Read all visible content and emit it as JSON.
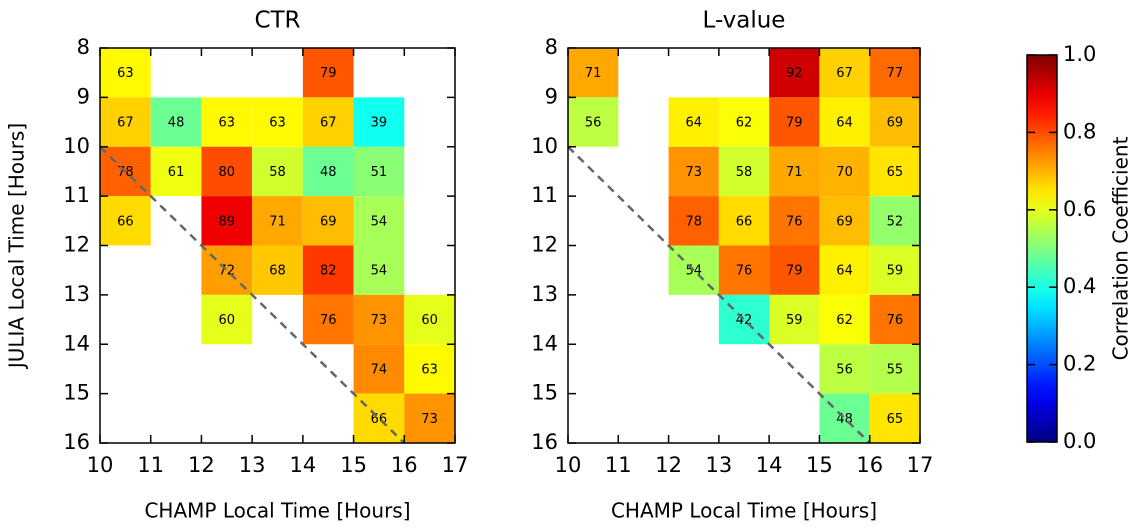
{
  "chart_data": [
    {
      "type": "heatmap",
      "title": "CTR",
      "xlabel": "CHAMP Local Time [Hours]",
      "ylabel": "JULIA Local Time [Hours]",
      "xlim": [
        10,
        17
      ],
      "ylim": [
        16,
        8
      ],
      "xticks": [
        10,
        11,
        12,
        13,
        14,
        15,
        16,
        17
      ],
      "yticks": [
        8,
        9,
        10,
        11,
        12,
        13,
        14,
        15,
        16
      ],
      "x": [
        10,
        14,
        10,
        11,
        12,
        13,
        14,
        15,
        10,
        11,
        12,
        13,
        14,
        15,
        10,
        12,
        13,
        14,
        15,
        12,
        13,
        14,
        15,
        12,
        14,
        15,
        16,
        15,
        16,
        15,
        16
      ],
      "y": [
        8,
        8,
        9,
        9,
        9,
        9,
        9,
        9,
        10,
        10,
        10,
        10,
        10,
        10,
        11,
        11,
        11,
        11,
        11,
        12,
        12,
        12,
        12,
        13,
        13,
        13,
        13,
        14,
        14,
        15,
        15
      ],
      "values": [
        0.63,
        0.79,
        0.67,
        0.48,
        0.63,
        0.63,
        0.67,
        0.39,
        0.78,
        0.61,
        0.8,
        0.58,
        0.48,
        0.51,
        0.66,
        0.89,
        0.71,
        0.69,
        0.54,
        0.72,
        0.68,
        0.82,
        0.54,
        0.6,
        0.76,
        0.73,
        0.6,
        0.74,
        0.63,
        0.66,
        0.73
      ],
      "value_labels": [
        "63",
        "79",
        "67",
        "48",
        "63",
        "63",
        "67",
        "39",
        "78",
        "61",
        "80",
        "58",
        "48",
        "51",
        "66",
        "89",
        "71",
        "69",
        "54",
        "72",
        "68",
        "82",
        "54",
        "60",
        "76",
        "73",
        "60",
        "74",
        "63",
        "66",
        "73"
      ]
    },
    {
      "type": "heatmap",
      "title": "L-value",
      "xlabel": "CHAMP Local Time [Hours]",
      "xlim": [
        10,
        17
      ],
      "ylim": [
        16,
        8
      ],
      "xticks": [
        10,
        11,
        12,
        13,
        14,
        15,
        16,
        17
      ],
      "yticks": [
        8,
        9,
        10,
        11,
        12,
        13,
        14,
        15,
        16
      ],
      "x": [
        10,
        14,
        15,
        16,
        10,
        12,
        13,
        14,
        15,
        16,
        12,
        13,
        14,
        15,
        16,
        12,
        13,
        14,
        15,
        16,
        12,
        13,
        14,
        15,
        16,
        13,
        14,
        15,
        16,
        15,
        16,
        15,
        16
      ],
      "y": [
        8,
        8,
        8,
        8,
        9,
        9,
        9,
        9,
        9,
        9,
        10,
        10,
        10,
        10,
        10,
        11,
        11,
        11,
        11,
        11,
        12,
        12,
        12,
        12,
        12,
        13,
        13,
        13,
        13,
        14,
        14,
        15,
        15
      ],
      "values": [
        0.71,
        0.92,
        0.67,
        0.77,
        0.56,
        0.64,
        0.62,
        0.79,
        0.64,
        0.69,
        0.73,
        0.58,
        0.71,
        0.7,
        0.65,
        0.78,
        0.66,
        0.76,
        0.69,
        0.52,
        0.54,
        0.76,
        0.79,
        0.64,
        0.59,
        0.42,
        0.59,
        0.62,
        0.76,
        0.56,
        0.55,
        0.48,
        0.65
      ],
      "value_labels": [
        "71",
        "92",
        "67",
        "77",
        "56",
        "64",
        "62",
        "79",
        "64",
        "69",
        "73",
        "58",
        "71",
        "70",
        "65",
        "78",
        "66",
        "76",
        "69",
        "52",
        "54",
        "76",
        "79",
        "64",
        "59",
        "42",
        "59",
        "62",
        "76",
        "56",
        "55",
        "48",
        "65"
      ]
    }
  ],
  "colorbar": {
    "label": "Correlation Coefficient",
    "colormap": "jet",
    "lim": [
      0,
      1
    ],
    "ticks": [
      {
        "value": 0,
        "label": "0.0"
      },
      0.2,
      0.4,
      0.6,
      0.8,
      {
        "value": 1,
        "label": "1.0"
      }
    ]
  }
}
